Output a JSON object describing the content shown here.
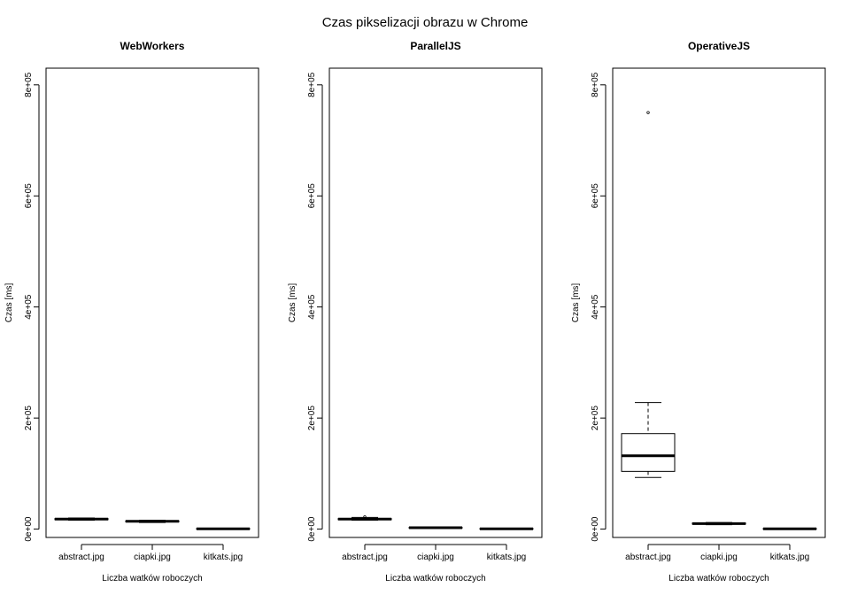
{
  "figure": {
    "title": "Czas pikselizacji obrazu w Chrome"
  },
  "chart_data": [
    {
      "type": "box",
      "title": "WebWorkers",
      "xlabel": "Liczba watków roboczych",
      "ylabel": "Czas [ms]",
      "categories": [
        "abstract.jpg",
        "ciapki.jpg",
        "kitkats.jpg"
      ],
      "ylim": [
        -15000,
        830000
      ],
      "yticks": [
        0,
        200000,
        400000,
        600000,
        800000
      ],
      "ytick_labels": [
        "0e+00",
        "2e+05",
        "4e+05",
        "6e+05",
        "8e+05"
      ],
      "boxes": [
        {
          "min": 16000,
          "q1": 17000,
          "median": 18000,
          "q3": 19000,
          "max": 20000,
          "outliers": []
        },
        {
          "min": 12000,
          "q1": 13000,
          "median": 14000,
          "q3": 15000,
          "max": 16000,
          "outliers": []
        },
        {
          "min": 0,
          "q1": 0,
          "median": 500,
          "q3": 1000,
          "max": 1500,
          "outliers": []
        }
      ]
    },
    {
      "type": "box",
      "title": "ParallelJS",
      "xlabel": "Liczba watków roboczych",
      "ylabel": "Czas [ms]",
      "categories": [
        "abstract.jpg",
        "ciapki.jpg",
        "kitkats.jpg"
      ],
      "ylim": [
        -15000,
        830000
      ],
      "yticks": [
        0,
        200000,
        400000,
        600000,
        800000
      ],
      "ytick_labels": [
        "0e+00",
        "2e+05",
        "4e+05",
        "6e+05",
        "8e+05"
      ],
      "boxes": [
        {
          "min": 16000,
          "q1": 17000,
          "median": 18000,
          "q3": 19000,
          "max": 21000,
          "outliers": [
            22000
          ]
        },
        {
          "min": 1500,
          "q1": 2000,
          "median": 2500,
          "q3": 3000,
          "max": 3500,
          "outliers": []
        },
        {
          "min": 0,
          "q1": 0,
          "median": 500,
          "q3": 1000,
          "max": 1500,
          "outliers": []
        }
      ]
    },
    {
      "type": "box",
      "title": "OperativeJS",
      "xlabel": "Liczba watków roboczych",
      "ylabel": "Czas [ms]",
      "categories": [
        "abstract.jpg",
        "ciapki.jpg",
        "kitkats.jpg"
      ],
      "ylim": [
        -15000,
        830000
      ],
      "yticks": [
        0,
        200000,
        400000,
        600000,
        800000
      ],
      "ytick_labels": [
        "0e+00",
        "2e+05",
        "4e+05",
        "6e+05",
        "8e+05"
      ],
      "boxes": [
        {
          "min": 93000,
          "q1": 104000,
          "median": 132000,
          "q3": 172000,
          "max": 228000,
          "outliers": [
            750000
          ]
        },
        {
          "min": 8000,
          "q1": 9000,
          "median": 10000,
          "q3": 11000,
          "max": 12000,
          "outliers": []
        },
        {
          "min": 0,
          "q1": 0,
          "median": 500,
          "q3": 1000,
          "max": 1500,
          "outliers": []
        }
      ]
    }
  ]
}
